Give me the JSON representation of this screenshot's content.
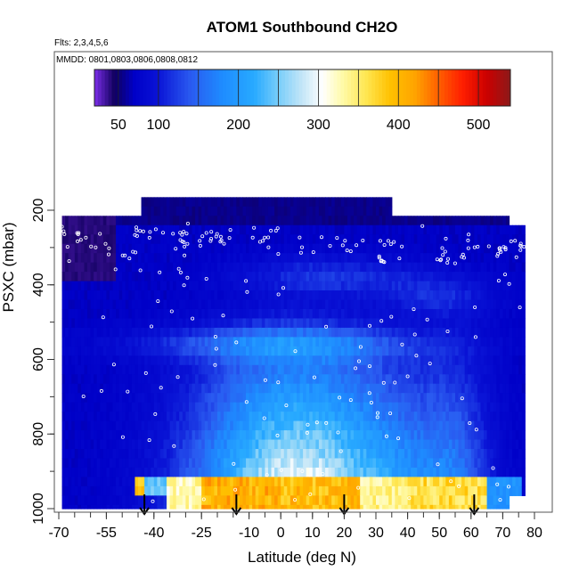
{
  "chart_data": {
    "type": "heatmap",
    "title": "ATOM1 Southbound CH2O",
    "subtitle_flights": "Flts: 2,3,4,5,6",
    "subtitle_dates": "MMDD: 0801,0803,0806,0808,0812",
    "xlabel": "Latitude (deg N)",
    "ylabel": "PSXC (mbar)",
    "xlim": [
      -70,
      82
    ],
    "ylim": [
      1000,
      120
    ],
    "x_ticks": [
      -70,
      -55,
      -40,
      -25,
      -10,
      0,
      10,
      20,
      30,
      40,
      50,
      60,
      70,
      80
    ],
    "x_tick_labels": [
      "-70",
      "-55",
      "-40",
      "-25",
      "-10",
      "0",
      "10",
      "20",
      "30",
      "40",
      "50",
      "60",
      "70",
      "80"
    ],
    "y_ticks": [
      200,
      400,
      600,
      800,
      1000
    ],
    "y_tick_labels": [
      "200",
      "400",
      "600",
      "800",
      "1000"
    ],
    "colorbar": {
      "range": [
        20,
        540
      ],
      "ticks": [
        50,
        100,
        200,
        300,
        400,
        500
      ],
      "tick_labels": [
        "50",
        "100",
        "200",
        "300",
        "400",
        "500"
      ],
      "stops": [
        [
          20,
          "#7b2ee8"
        ],
        [
          45,
          "#10005e"
        ],
        [
          70,
          "#0000c8"
        ],
        [
          100,
          "#0a14d6"
        ],
        [
          140,
          "#2a5af0"
        ],
        [
          180,
          "#1e8cff"
        ],
        [
          220,
          "#28aaff"
        ],
        [
          250,
          "#78cdfa"
        ],
        [
          280,
          "#c4e6f7"
        ],
        [
          305,
          "#ffffff"
        ],
        [
          330,
          "#fffaa8"
        ],
        [
          360,
          "#ffe650"
        ],
        [
          390,
          "#ffc000"
        ],
        [
          420,
          "#ffa500"
        ],
        [
          450,
          "#ff6000"
        ],
        [
          480,
          "#ff1e00"
        ],
        [
          510,
          "#cc0000"
        ],
        [
          540,
          "#8c1a1a"
        ]
      ]
    },
    "field_model": {
      "note": "Approximate CH2O mixing ratio (pptv) field, gridded by latitude and pressure",
      "background_pptv": 70,
      "boundary_layer": [
        {
          "lat_min": -46,
          "lat_max": -43,
          "p_min": 925,
          "p_max": 975,
          "value": 385
        },
        {
          "lat_min": -43,
          "lat_max": -36,
          "p_min": 925,
          "p_max": 975,
          "value": 240
        },
        {
          "lat_min": -36,
          "lat_max": -25,
          "p_min": 925,
          "p_max": 1000,
          "value": 330
        },
        {
          "lat_min": -25,
          "lat_max": 0,
          "p_min": 925,
          "p_max": 1000,
          "value": 405
        },
        {
          "lat_min": 0,
          "lat_max": 25,
          "p_min": 925,
          "p_max": 1000,
          "value": 395
        },
        {
          "lat_min": 25,
          "lat_max": 40,
          "p_min": 925,
          "p_max": 1000,
          "value": 340
        },
        {
          "lat_min": 40,
          "lat_max": 65,
          "p_min": 925,
          "p_max": 1000,
          "value": 365
        },
        {
          "lat_min": 65,
          "lat_max": 76,
          "p_min": 925,
          "p_max": 1000,
          "value": 190
        }
      ]
    },
    "arrows": {
      "description": "Sounding locations marked with downward arrows at the bottom axis",
      "latitudes": [
        -43,
        -14,
        20,
        61
      ]
    },
    "sample_points": "Individual measurements shown as small open white circles"
  }
}
